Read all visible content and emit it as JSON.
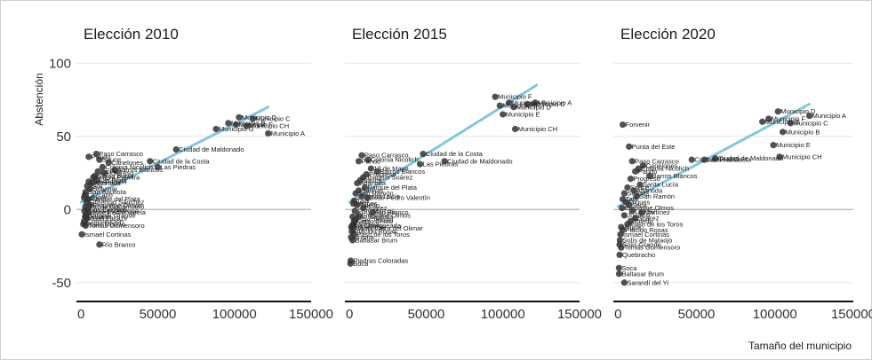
{
  "chart_data": {
    "type": "scatter",
    "xlabel": "Tamaño del municipio",
    "ylabel": "Abstención",
    "xlim": [
      -3000,
      150000
    ],
    "ylim": [
      -55,
      105
    ],
    "x_ticks": [
      0,
      50000,
      100000,
      150000
    ],
    "x_tick_labels": [
      "0",
      "50000",
      "100000",
      "150000"
    ],
    "y_ticks": [
      -50,
      0,
      50,
      100
    ],
    "y_tick_labels": [
      "-50",
      "0",
      "50",
      "100"
    ],
    "grid": "horizontal",
    "colors": {
      "points": "#333333",
      "trend": "#7ec8e3",
      "zero_line": "#b5b5b5",
      "grid": "#e6e6e6",
      "axis": "#111111"
    },
    "panels": [
      {
        "title": "Elección 2010",
        "trend": {
          "x": [
            0,
            122000
          ],
          "y": [
            5,
            70
          ]
        },
        "points": [
          {
            "label": "Municipio D",
            "x": 103000,
            "y": 63
          },
          {
            "label": "Municipio B",
            "x": 96000,
            "y": 59
          },
          {
            "label": "Municipio C",
            "x": 112000,
            "y": 62
          },
          {
            "label": "Municipio F",
            "x": 101000,
            "y": 58
          },
          {
            "label": "Municipio CH",
            "x": 108000,
            "y": 57
          },
          {
            "label": "Municipio G",
            "x": 88000,
            "y": 55
          },
          {
            "label": "Municipio A",
            "x": 122000,
            "y": 52
          },
          {
            "label": "Ciudad de Maldonado",
            "x": 62000,
            "y": 41
          },
          {
            "label": "Paso Carrasco",
            "x": 10000,
            "y": 38
          },
          {
            "label": "Pando",
            "x": 5000,
            "y": 36
          },
          {
            "label": "Sauce",
            "x": 12000,
            "y": 34
          },
          {
            "label": "Ciudad de la Costa",
            "x": 45000,
            "y": 33
          },
          {
            "label": "Canelones",
            "x": 18000,
            "y": 32
          },
          {
            "label": "Las Piedras",
            "x": 50000,
            "y": 29
          },
          {
            "label": "Colonia Nicolich",
            "x": 14000,
            "y": 29
          },
          {
            "label": "Barros Blancos",
            "x": 22000,
            "y": 27
          },
          {
            "label": "Progreso",
            "x": 15000,
            "y": 25
          },
          {
            "label": "La Paz",
            "x": 11000,
            "y": 26
          },
          {
            "label": "Santa Lucía",
            "x": 9000,
            "y": 23
          },
          {
            "label": "Nueva Palmira",
            "x": 8000,
            "y": 22
          },
          {
            "label": "Las Plata",
            "x": 10000,
            "y": 20
          },
          {
            "label": "San Ramón",
            "x": 5000,
            "y": 19
          },
          {
            "label": "Atlántida",
            "x": 7000,
            "y": 18
          },
          {
            "label": "Tala",
            "x": 4000,
            "y": 16
          },
          {
            "label": "Solymar",
            "x": 6000,
            "y": 14
          },
          {
            "label": "San Bautista",
            "x": 3000,
            "y": 12
          },
          {
            "label": "Lazcano",
            "x": 2500,
            "y": 10
          },
          {
            "label": "Migues",
            "x": 2000,
            "y": 8
          },
          {
            "label": "Parque del Plata",
            "x": 4500,
            "y": 7
          },
          {
            "label": "Florencio Sánchez",
            "x": 3500,
            "y": 5
          },
          {
            "label": "Empalme Olmos",
            "x": 6000,
            "y": 3
          },
          {
            "label": "Tomás Gomensoro",
            "x": 2800,
            "y": 2
          },
          {
            "label": "Los Cerrillos",
            "x": 4000,
            "y": 0
          },
          {
            "label": "Colonia Valdense",
            "x": 2200,
            "y": -1
          },
          {
            "label": "José Pedro Varela",
            "x": 5000,
            "y": -2
          },
          {
            "label": "Sarandí Grande",
            "x": 3000,
            "y": -4
          },
          {
            "label": "Rosario",
            "x": 2600,
            "y": -5
          },
          {
            "label": "Juan Lacaze",
            "x": 4000,
            "y": -6
          },
          {
            "label": "Constitución",
            "x": 2000,
            "y": -8
          },
          {
            "label": "Fraile Muerto",
            "x": 1500,
            "y": -10
          },
          {
            "label": "Tomás Gomensoro",
            "x": 3000,
            "y": -11
          },
          {
            "label": "Ismael Cortinas",
            "x": 500,
            "y": -17
          },
          {
            "label": "Río Branco",
            "x": 12000,
            "y": -24
          }
        ]
      },
      {
        "title": "Elección 2015",
        "trend": {
          "x": [
            0,
            122000
          ],
          "y": [
            5,
            85
          ]
        },
        "points": [
          {
            "label": "Municipio F",
            "x": 95000,
            "y": 77
          },
          {
            "label": "Municipio B",
            "x": 104000,
            "y": 73
          },
          {
            "label": "Municipio A",
            "x": 121000,
            "y": 73
          },
          {
            "label": "Municipio C",
            "x": 116000,
            "y": 72
          },
          {
            "label": "Municipio G",
            "x": 98000,
            "y": 71
          },
          {
            "label": "Municipio D",
            "x": 107000,
            "y": 70
          },
          {
            "label": "Municipio E",
            "x": 100000,
            "y": 65
          },
          {
            "label": "Municipio CH",
            "x": 108000,
            "y": 55
          },
          {
            "label": "Ciudad de la Costa",
            "x": 48000,
            "y": 38
          },
          {
            "label": "Paso Carrasco",
            "x": 8000,
            "y": 37
          },
          {
            "label": "Ciudad de Maldonado",
            "x": 62000,
            "y": 33
          },
          {
            "label": "Las Piedras",
            "x": 46000,
            "y": 31
          },
          {
            "label": "Colonia Nicolich",
            "x": 12000,
            "y": 34
          },
          {
            "label": "Pando",
            "x": 6000,
            "y": 33
          },
          {
            "label": "18 de Mayo",
            "x": 14000,
            "y": 28
          },
          {
            "label": "Barros Blancos",
            "x": 18000,
            "y": 26
          },
          {
            "label": "Progreso",
            "x": 11000,
            "y": 24
          },
          {
            "label": "Joaquín Suárez",
            "x": 9000,
            "y": 22
          },
          {
            "label": "Sauce",
            "x": 7000,
            "y": 20
          },
          {
            "label": "Atlántida",
            "x": 5000,
            "y": 18
          },
          {
            "label": "Parque del Plata",
            "x": 10000,
            "y": 15
          },
          {
            "label": "Salinas",
            "x": 6000,
            "y": 13
          },
          {
            "label": "San Ramón",
            "x": 4000,
            "y": 11
          },
          {
            "label": "Santa Lucía",
            "x": 8000,
            "y": 9
          },
          {
            "label": "José Pedro Valentín",
            "x": 12000,
            "y": 8
          },
          {
            "label": "Tala",
            "x": 3000,
            "y": 6
          },
          {
            "label": "Migues",
            "x": 2500,
            "y": 4
          },
          {
            "label": "Toledo",
            "x": 5000,
            "y": 3
          },
          {
            "label": "Suárez",
            "x": 9000,
            "y": 1
          },
          {
            "label": "Fray Marcos",
            "x": 3500,
            "y": -1
          },
          {
            "label": "Río Branco",
            "x": 15000,
            "y": -2
          },
          {
            "label": "Empalme Olmos",
            "x": 6000,
            "y": -4
          },
          {
            "label": "San Bautista",
            "x": 2000,
            "y": -5
          },
          {
            "label": "San Jacinto",
            "x": 4000,
            "y": -7
          },
          {
            "label": "Cerro Chato",
            "x": 3000,
            "y": -8
          },
          {
            "label": "Vergara",
            "x": 2500,
            "y": -10
          },
          {
            "label": "La Charqueada",
            "x": 1800,
            "y": -11
          },
          {
            "label": "Tupambaé",
            "x": 1200,
            "y": -12
          },
          {
            "label": "Santa Clara del Olimar",
            "x": 2200,
            "y": -13
          },
          {
            "label": "Plácido Rosas",
            "x": 1500,
            "y": -15
          },
          {
            "label": "Paso de los Toros",
            "x": 3000,
            "y": -17
          },
          {
            "label": "Ansina",
            "x": 1000,
            "y": -19
          },
          {
            "label": "Baltasar Brum",
            "x": 2000,
            "y": -21
          },
          {
            "label": "Piedras Coloradas",
            "x": 800,
            "y": -35
          },
          {
            "label": "Boca",
            "x": 600,
            "y": -37
          }
        ]
      },
      {
        "title": "Elección 2020",
        "trend": {
          "x": [
            0,
            122000
          ],
          "y": [
            2,
            72
          ]
        },
        "points": [
          {
            "label": "Municipio D",
            "x": 102000,
            "y": 67
          },
          {
            "label": "Municipio A",
            "x": 122000,
            "y": 64
          },
          {
            "label": "Municipio F",
            "x": 96000,
            "y": 62
          },
          {
            "label": "Municipio G",
            "x": 92000,
            "y": 60
          },
          {
            "label": "Municipio C",
            "x": 110000,
            "y": 59
          },
          {
            "label": "Municipio B",
            "x": 105000,
            "y": 53
          },
          {
            "label": "Municipio E",
            "x": 99000,
            "y": 44
          },
          {
            "label": "Municipio CH",
            "x": 103000,
            "y": 36
          },
          {
            "label": "Forvenir",
            "x": 3000,
            "y": 58
          },
          {
            "label": "Punta del Este",
            "x": 7000,
            "y": 43
          },
          {
            "label": "Ciudad de Maldonado",
            "x": 62000,
            "y": 35
          },
          {
            "label": "Ciudad de la Costa",
            "x": 47000,
            "y": 34
          },
          {
            "label": "Las Piedras",
            "x": 55000,
            "y": 34
          },
          {
            "label": "Paso Carrasco",
            "x": 9000,
            "y": 33
          },
          {
            "label": "Canelones",
            "x": 16000,
            "y": 30
          },
          {
            "label": "Colonia Nicolich",
            "x": 13000,
            "y": 28
          },
          {
            "label": "Pando",
            "x": 11000,
            "y": 26
          },
          {
            "label": "Barros Blancos",
            "x": 20000,
            "y": 23
          },
          {
            "label": "Progreso",
            "x": 8000,
            "y": 21
          },
          {
            "label": "Santa Lucía",
            "x": 14000,
            "y": 17
          },
          {
            "label": "Sauce",
            "x": 6000,
            "y": 15
          },
          {
            "label": "Atlántida",
            "x": 10000,
            "y": 13
          },
          {
            "label": "Salinas",
            "x": 4000,
            "y": 11
          },
          {
            "label": "San Ramón",
            "x": 12000,
            "y": 9
          },
          {
            "label": "Tala",
            "x": 3000,
            "y": 7
          },
          {
            "label": "Migues",
            "x": 5000,
            "y": 5
          },
          {
            "label": "Soca",
            "x": 7000,
            "y": 3
          },
          {
            "label": "Empalme Olmos",
            "x": 2500,
            "y": 1
          },
          {
            "label": "La Paz",
            "x": 9000,
            "y": -1
          },
          {
            "label": "Martínez",
            "x": 15000,
            "y": -2
          },
          {
            "label": "Juanicó",
            "x": 4000,
            "y": -4
          },
          {
            "label": "Suárez",
            "x": 11000,
            "y": -6
          },
          {
            "label": "Toledo",
            "x": 8000,
            "y": -8
          },
          {
            "label": "Paso de los Toros",
            "x": 6000,
            "y": -10
          },
          {
            "label": "Aiguá",
            "x": 2000,
            "y": -12
          },
          {
            "label": "Plácido Rosas",
            "x": 3000,
            "y": -14
          },
          {
            "label": "Ismael Cortinas",
            "x": 1500,
            "y": -17
          },
          {
            "label": "Solís de Mataojo",
            "x": 1200,
            "y": -21
          },
          {
            "label": "Solís Grande",
            "x": 1000,
            "y": -24
          },
          {
            "label": "Tomás Gomensoro",
            "x": 2000,
            "y": -26
          },
          {
            "label": "Quebracho",
            "x": 1000,
            "y": -31
          },
          {
            "label": "Soca",
            "x": 600,
            "y": -40
          },
          {
            "label": "Baltasar Brum",
            "x": 700,
            "y": -44
          },
          {
            "label": "Sarandí del Yi",
            "x": 4000,
            "y": -50
          }
        ]
      }
    ]
  }
}
